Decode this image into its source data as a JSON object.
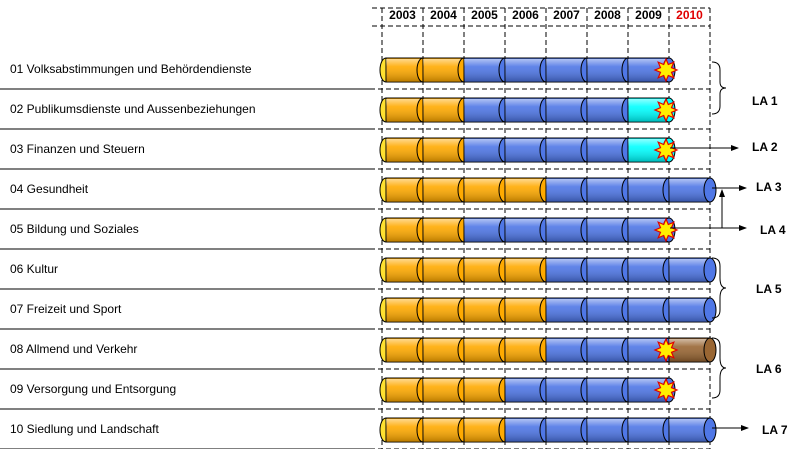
{
  "years": [
    "2003",
    "2004",
    "2005",
    "2006",
    "2007",
    "2008",
    "2009",
    "2010"
  ],
  "rows": [
    {
      "label": "01 Volksabstimmungen und Behördendienste",
      "colors": [
        "#ffaa00",
        "#ffaa00",
        "#4f77e6",
        "#4f77e6",
        "#4f77e6",
        "#4f77e6",
        "#4f77e6",
        null
      ],
      "star": true
    },
    {
      "label": "02 Publikumsdienste und Aussenbeziehungen",
      "colors": [
        "#ffaa00",
        "#ffaa00",
        "#4f77e6",
        "#4f77e6",
        "#4f77e6",
        "#4f77e6",
        "#00ffff",
        null
      ],
      "star": true
    },
    {
      "label": "03 Finanzen und Steuern",
      "colors": [
        "#ffaa00",
        "#ffaa00",
        "#4f77e6",
        "#4f77e6",
        "#4f77e6",
        "#4f77e6",
        "#00ffff",
        null
      ],
      "star": true
    },
    {
      "label": "04 Gesundheit",
      "colors": [
        "#ffaa00",
        "#ffaa00",
        "#ffaa00",
        "#ffaa00",
        "#4f77e6",
        "#4f77e6",
        "#4f77e6",
        "#4f77e6"
      ],
      "star": false
    },
    {
      "label": "05 Bildung und Soziales",
      "colors": [
        "#ffaa00",
        "#ffaa00",
        "#4f77e6",
        "#4f77e6",
        "#4f77e6",
        "#4f77e6",
        "#4f77e6",
        null
      ],
      "star": true
    },
    {
      "label": "06 Kultur",
      "colors": [
        "#ffaa00",
        "#ffaa00",
        "#ffaa00",
        "#ffaa00",
        "#4f77e6",
        "#4f77e6",
        "#4f77e6",
        "#4f77e6"
      ],
      "star": false
    },
    {
      "label": "07 Freizeit und Sport",
      "colors": [
        "#ffaa00",
        "#ffaa00",
        "#ffaa00",
        "#ffaa00",
        "#4f77e6",
        "#4f77e6",
        "#4f77e6",
        "#4f77e6"
      ],
      "star": false
    },
    {
      "label": "08 Allmend und Verkehr",
      "colors": [
        "#ffaa00",
        "#ffaa00",
        "#ffaa00",
        "#ffaa00",
        "#4f77e6",
        "#4f77e6",
        "#4f77e6",
        "#996633"
      ],
      "star": true
    },
    {
      "label": "09 Versorgung und Entsorgung",
      "colors": [
        "#ffaa00",
        "#ffaa00",
        "#ffaa00",
        "#4f77e6",
        "#4f77e6",
        "#4f77e6",
        "#4f77e6",
        null
      ],
      "star": true
    },
    {
      "label": "10 Siedlung und Landschaft",
      "colors": [
        "#ffaa00",
        "#ffaa00",
        "#ffaa00",
        "#4f77e6",
        "#4f77e6",
        "#4f77e6",
        "#4f77e6",
        "#4f77e6"
      ],
      "star": false
    }
  ],
  "groups": [
    "LA 1",
    "LA 2",
    "LA 3",
    "LA 4",
    "LA 5",
    "LA 6",
    "LA 7"
  ]
}
